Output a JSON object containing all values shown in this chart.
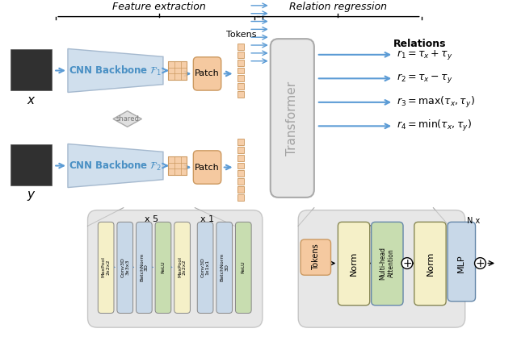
{
  "title_feature": "Feature extraction",
  "title_relation": "Relation regression",
  "cnn1_label": "CNN Backbone $\\mathcal{F}_1$",
  "cnn2_label": "CNN Backbone $\\mathcal{F}_2$",
  "shared_label": "shared",
  "patch_label": "Patch",
  "transformer_label": "Transformer",
  "tokens_label": "Tokens",
  "tokens_label2": "Tokens",
  "relations_title": "Relations",
  "r1": "$r_1 = \\tau_x + \\tau_y$",
  "r2": "$r_2 = \\tau_x - \\tau_y$",
  "r3": "$r_3 = \\mathrm{max}(\\tau_x, \\tau_y)$",
  "r4": "$r_4 = \\mathrm{min}(\\tau_x, \\tau_y)$",
  "x_label": "$x$",
  "y_label": "$y$",
  "nx_label": "N x",
  "cnn_color": "#a8c4e0",
  "cnn_text_color": "#4a90c4",
  "patch_color": "#f5c9a0",
  "token_color": "#f5c9a0",
  "transformer_color": "#e8e8e8",
  "norm_color": "#f5f0c8",
  "attention_color": "#c8ddb0",
  "mlp_color": "#c8d8e8",
  "backbone_layers_x5": [
    "MaxPool 2x2x2",
    "Conv3D 3x3x3",
    "BatchNorm 3D",
    "ReLU",
    "MaxPool 2x2x2"
  ],
  "backbone_layers_x1": [
    "Conv3D 1x1x1",
    "BatchNorm 3D",
    "ReLU"
  ],
  "layer_colors_x5": [
    "#f5f0c8",
    "#c8d8e8",
    "#c8d8e8",
    "#c8ddb0",
    "#f5f0c8"
  ],
  "layer_colors_x1": [
    "#c8d8e8",
    "#c8d8e8",
    "#c8ddb0"
  ],
  "bg_color": "#ffffff",
  "arrow_color": "#5b9bd5",
  "box_gray": "#c8c8c8",
  "expand_box_color": "#d8d8d8"
}
